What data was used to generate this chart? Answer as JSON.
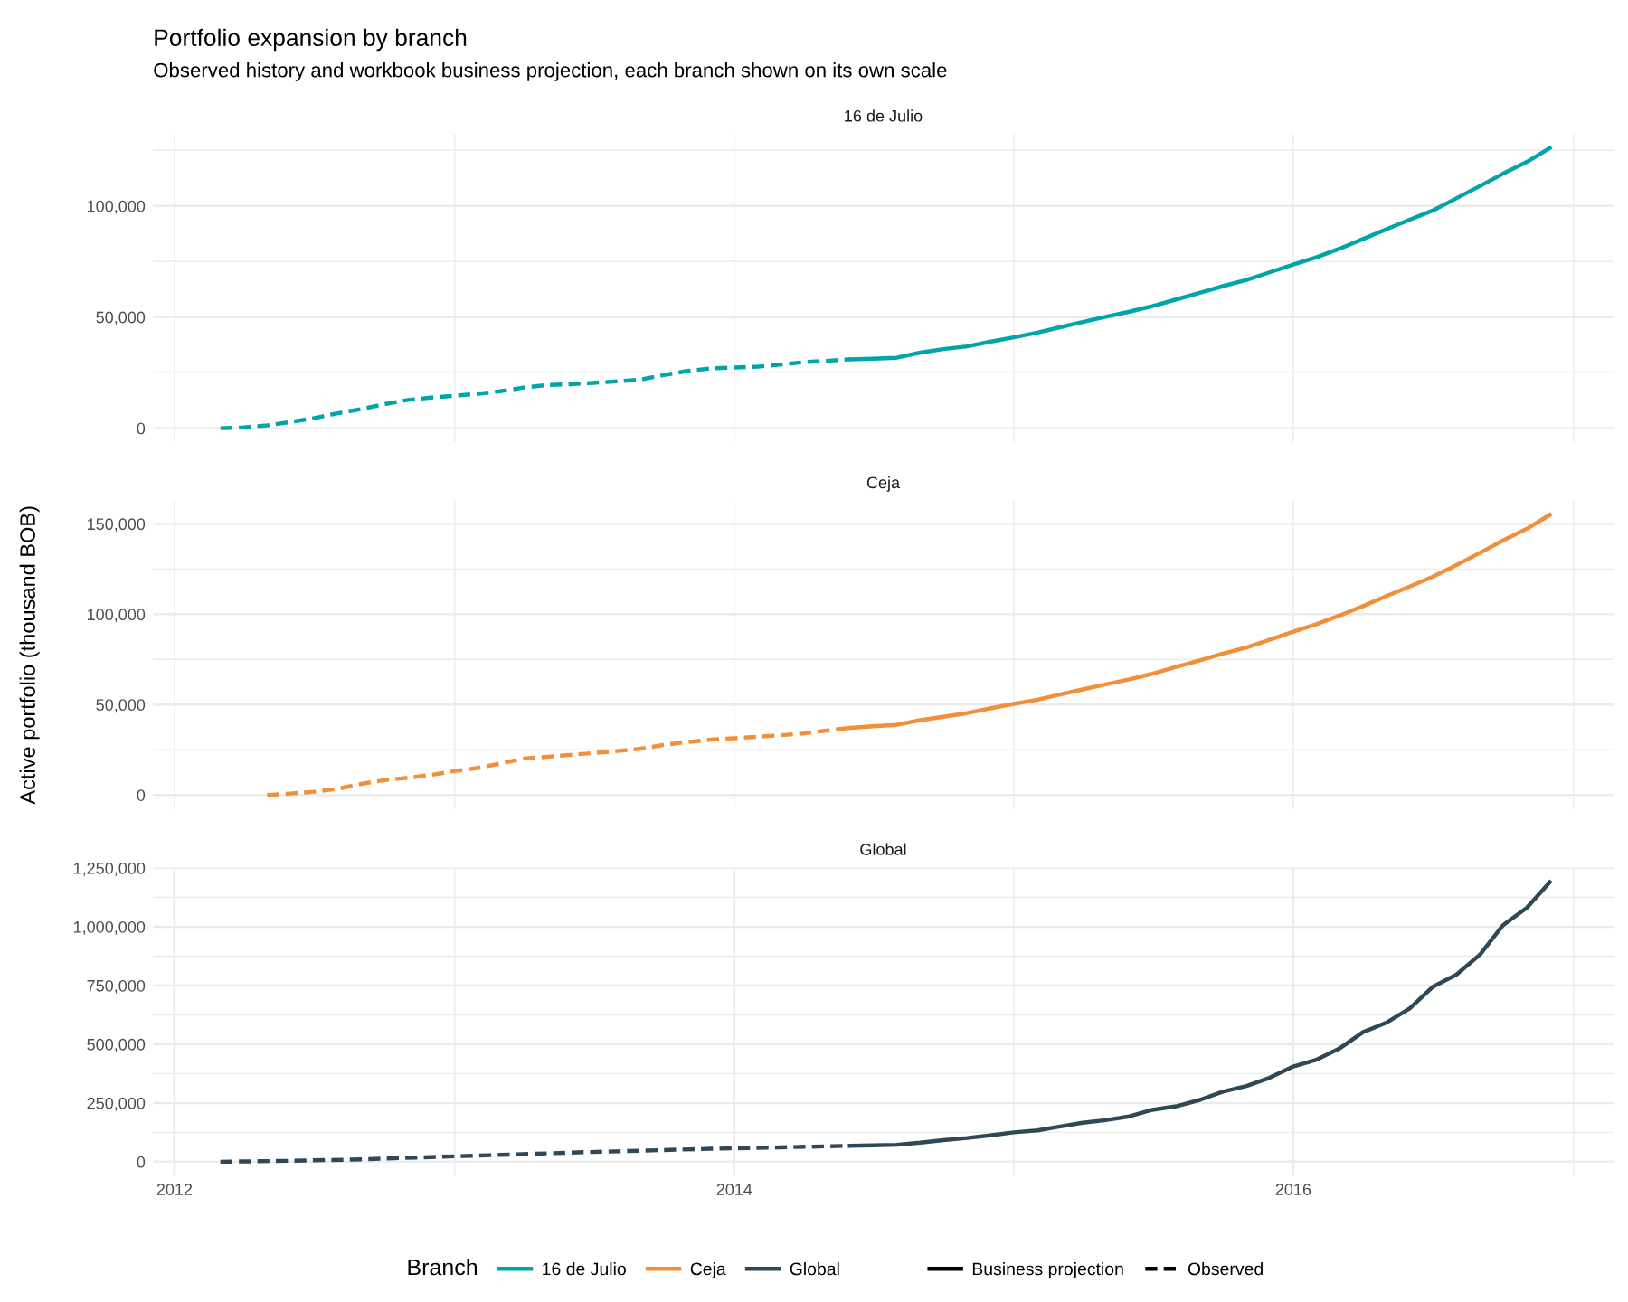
{
  "chart_data": [
    {
      "type": "line",
      "title": "Portfolio expansion by branch",
      "subtitle": "Observed history and workbook business projection, each branch shown on its own scale",
      "annotations": [
        "16 de Julio"
      ],
      "legend": "bottom",
      "legend_title": "Branch",
      "xlim": [
        "2011-12-04",
        "2017-02-22"
      ],
      "xticks": [
        {
          "value": "2012",
          "label": null
        },
        {
          "value": "2013",
          "label": null
        },
        {
          "value": "2014",
          "label": null
        },
        {
          "value": "2015",
          "label": null
        },
        {
          "value": "2016",
          "label": null
        },
        {
          "value": "2017",
          "label": null
        }
      ],
      "ylim": [
        -6300,
        132300
      ],
      "yticks": [
        0,
        {
          "value": 25000,
          "label": null
        },
        {
          "value": 50000,
          "label": "50,000"
        },
        {
          "value": 75000,
          "label": null
        },
        {
          "value": 100000,
          "label": "100,000"
        },
        {
          "value": 125000,
          "label": null
        }
      ],
      "tick_labels": "y",
      "grid": true,
      "series": [
        {
          "name": "16 de Julio",
          "color": "#00a5a8",
          "line_style": "solid",
          "x": [
            "2014-06",
            "2014-07",
            "2014-08",
            "2014-09",
            "2014-10",
            "2014-11",
            "2014-12",
            "2015-01",
            "2015-02",
            "2015-03",
            "2015-04",
            "2015-05",
            "2015-06",
            "2015-07",
            "2015-08",
            "2015-09",
            "2015-10",
            "2015-11",
            "2015-12",
            "2016-01",
            "2016-02",
            "2016-03",
            "2016-04",
            "2016-05",
            "2016-06",
            "2016-07",
            "2016-08",
            "2016-09",
            "2016-10",
            "2016-11",
            "2016-12"
          ],
          "values": [
            31000,
            31300,
            31700,
            34000,
            35600,
            36800,
            38900,
            40900,
            43000,
            45300,
            47800,
            50100,
            52400,
            54900,
            57900,
            60900,
            63900,
            66700,
            70100,
            73600,
            77000,
            80700,
            85100,
            89400,
            93800,
            97900,
            103400,
            109000,
            114500,
            119800,
            126000
          ]
        },
        {
          "color": "#00a5a8",
          "line_style": "dashed",
          "x": [
            "2012-03",
            "2012-04",
            "2012-05",
            "2012-06",
            "2012-07",
            "2012-08",
            "2012-09",
            "2012-10",
            "2012-11",
            "2012-12",
            "2013-01",
            "2013-02",
            "2013-03",
            "2013-04",
            "2013-05",
            "2013-06",
            "2013-07",
            "2013-08",
            "2013-09",
            "2013-10",
            "2013-11",
            "2013-12",
            "2014-01",
            "2014-02",
            "2014-03",
            "2014-04",
            "2014-05",
            "2014-06"
          ],
          "values": [
            0,
            400,
            1300,
            2800,
            4500,
            6700,
            8600,
            10800,
            12700,
            13800,
            14600,
            15500,
            16600,
            18300,
            19400,
            19800,
            20400,
            21100,
            21900,
            23900,
            25800,
            26900,
            27300,
            27700,
            28600,
            29700,
            30300,
            31000
          ]
        }
      ]
    },
    {
      "type": "line",
      "ylabel": "Active portfolio (thousand BOB)",
      "annotations": [
        "Ceja"
      ],
      "legend": "bottom",
      "xlim": [
        "2011-12-04",
        "2017-02-22"
      ],
      "xticks": [
        {
          "value": "2012",
          "label": null
        },
        {
          "value": "2013",
          "label": null
        },
        {
          "value": "2014",
          "label": null
        },
        {
          "value": "2015",
          "label": null
        },
        {
          "value": "2016",
          "label": null
        },
        {
          "value": "2017",
          "label": null
        }
      ],
      "ylim": [
        -7750,
        162750
      ],
      "yticks": [
        0,
        {
          "value": 25000,
          "label": null
        },
        {
          "value": 50000,
          "label": "50,000"
        },
        {
          "value": 75000,
          "label": null
        },
        {
          "value": 100000,
          "label": "100,000"
        },
        {
          "value": 125000,
          "label": null
        },
        {
          "value": 150000,
          "label": "150,000"
        }
      ],
      "tick_labels": "y",
      "grid": true,
      "series": [
        {
          "name": "Ceja",
          "color": "#f28f3b",
          "line_style": "solid",
          "x": [
            "2014-06",
            "2014-07",
            "2014-08",
            "2014-09",
            "2014-10",
            "2014-11",
            "2014-12",
            "2015-01",
            "2015-02",
            "2015-03",
            "2015-04",
            "2015-05",
            "2015-06",
            "2015-07",
            "2015-08",
            "2015-09",
            "2015-10",
            "2015-11",
            "2015-12",
            "2016-01",
            "2016-02",
            "2016-03",
            "2016-04",
            "2016-05",
            "2016-06",
            "2016-07",
            "2016-08",
            "2016-09",
            "2016-10",
            "2016-11",
            "2016-12"
          ],
          "values": [
            37100,
            38000,
            38800,
            41400,
            43300,
            45300,
            47900,
            50400,
            52700,
            55500,
            58400,
            61200,
            64000,
            67100,
            70800,
            74500,
            78200,
            81600,
            85800,
            90400,
            94600,
            99200,
            104500,
            109900,
            115300,
            120700,
            127200,
            134000,
            140800,
            147300,
            155000
          ]
        },
        {
          "color": "#f28f3b",
          "line_style": "dashed",
          "x": [
            "2012-05",
            "2012-06",
            "2012-07",
            "2012-08",
            "2012-09",
            "2012-10",
            "2012-11",
            "2012-12",
            "2013-01",
            "2013-02",
            "2013-03",
            "2013-04",
            "2013-05",
            "2013-06",
            "2013-07",
            "2013-08",
            "2013-09",
            "2013-10",
            "2013-11",
            "2013-12",
            "2014-01",
            "2014-02",
            "2014-03",
            "2014-04",
            "2014-05",
            "2014-06"
          ],
          "values": [
            0,
            800,
            1800,
            3400,
            6100,
            8200,
            9500,
            11100,
            13200,
            15000,
            17400,
            20100,
            21100,
            22200,
            23200,
            24300,
            25600,
            27700,
            29300,
            30600,
            31400,
            32200,
            33000,
            34000,
            35600,
            37100
          ]
        }
      ]
    },
    {
      "type": "line",
      "annotations": [
        "Global",
        "Business projection",
        "Observed"
      ],
      "legend": "bottom",
      "xlim": [
        "2011-12-04",
        "2017-02-22"
      ],
      "xticks": [
        "2012",
        {
          "value": "2013",
          "label": null
        },
        "2014",
        {
          "value": "2015",
          "label": null
        },
        "2016",
        {
          "value": "2017",
          "label": null
        }
      ],
      "ylim": [
        -59500,
        1252000
      ],
      "yticks": [
        0,
        {
          "value": 125000,
          "label": null
        },
        {
          "value": 250000,
          "label": "250,000"
        },
        {
          "value": 375000,
          "label": null
        },
        {
          "value": 500000,
          "label": "500,000"
        },
        {
          "value": 625000,
          "label": null
        },
        {
          "value": 750000,
          "label": "750,000"
        },
        {
          "value": 875000,
          "label": null
        },
        {
          "value": 1000000,
          "label": "1,000,000"
        },
        {
          "value": 1125000,
          "label": null
        },
        {
          "value": 1250000,
          "label": "1,250,000"
        }
      ],
      "grid": true,
      "series": [
        {
          "name": "Global",
          "color": "#2f4858",
          "line_style": "solid",
          "x": [
            "2014-06",
            "2014-07",
            "2014-08",
            "2014-09",
            "2014-10",
            "2014-11",
            "2014-12",
            "2015-01",
            "2015-02",
            "2015-03",
            "2015-04",
            "2015-05",
            "2015-06",
            "2015-07",
            "2015-08",
            "2015-09",
            "2015-10",
            "2015-11",
            "2015-12",
            "2016-01",
            "2016-02",
            "2016-03",
            "2016-04",
            "2016-05",
            "2016-06",
            "2016-07",
            "2016-08",
            "2016-09",
            "2016-10",
            "2016-11",
            "2016-12"
          ],
          "values": [
            68000,
            70000,
            72000,
            81000,
            92000,
            101000,
            112000,
            125000,
            133000,
            149000,
            166000,
            177000,
            193000,
            221000,
            236000,
            263000,
            298000,
            322000,
            357000,
            405000,
            435000,
            481000,
            551000,
            591000,
            652000,
            744000,
            796000,
            882000,
            1007000,
            1081000,
            1190000
          ]
        },
        {
          "color": "#2f4858",
          "line_style": "dashed",
          "x": [
            "2012-03",
            "2012-06",
            "2012-09",
            "2012-12",
            "2013-03",
            "2013-06",
            "2013-09",
            "2013-12",
            "2014-03",
            "2014-06"
          ],
          "values": [
            0,
            4000,
            10000,
            20000,
            29000,
            39000,
            47000,
            55000,
            61000,
            68000
          ]
        }
      ]
    }
  ]
}
